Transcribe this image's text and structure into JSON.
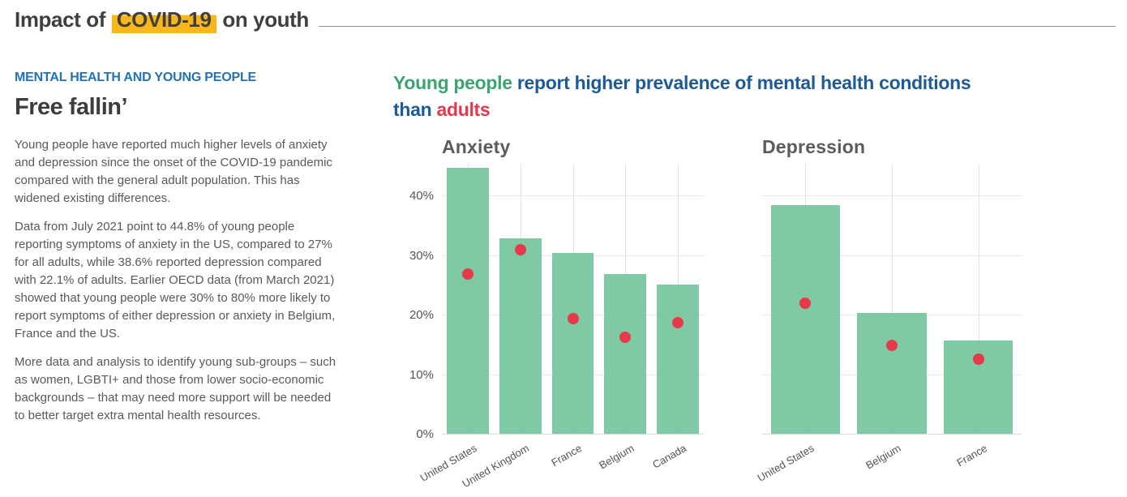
{
  "colors": {
    "title_text": "#3f3f41",
    "title_highlight": "#f8b71c",
    "kicker_blue": "#2173b5",
    "body_text": "#595959",
    "headline_blue": "#1d5b97",
    "headline_green": "#3ba470",
    "headline_red": "#e23a4c",
    "bar_fill": "rgba(105,191,148,0.85)",
    "dot_red": "#e8394a",
    "gridline": "#e9e9e9",
    "axis_line": "#d9d9d9"
  },
  "page": {
    "title_prefix": "Impact of ",
    "title_highlight": "COVID-19",
    "title_suffix": " on youth"
  },
  "sidebar": {
    "kicker": "MENTAL HEALTH AND YOUNG PEOPLE",
    "heading": "Free fallin’",
    "paragraphs": [
      "Young people have reported much higher levels of anxiety and depression since the onset of the COVID-19 pandemic compared with the general adult population. This has widened existing differences.",
      "Data from July 2021 point to 44.8% of young people reporting symptoms of anxiety in the US, compared to 27% for all adults, while 38.6% reported depression compared with 22.1% of adults. Earlier OECD data (from March 2021) showed that young people were 30% to 80% more likely to report symptoms of either depression or anxiety in Belgium, France and the US.",
      "More data and analysis to identify young sub-groups – such as women, LGBTI+ and those from lower socio-economic backgrounds – that may need more support will be needed to better target extra mental health resources."
    ]
  },
  "headline": {
    "line1_green": "Young people",
    "line1_blue": " report higher prevalence of mental health conditions",
    "line2_blue": "than ",
    "line2_red": "adults"
  },
  "chart_data": [
    {
      "type": "bar",
      "title": "Anxiety",
      "categories": [
        "United States",
        "United Kingdom",
        "France",
        "Belgium",
        "Canada"
      ],
      "series": [
        {
          "name": "Young people",
          "geom": "bar",
          "values": [
            44.8,
            33.0,
            30.5,
            27.0,
            25.2
          ]
        },
        {
          "name": "Adults",
          "geom": "point",
          "values": [
            27.0,
            31.0,
            19.5,
            16.3,
            18.8
          ]
        }
      ],
      "ylim": [
        0,
        45.5
      ],
      "grid_values": [
        0,
        10,
        20,
        30,
        40
      ],
      "yticks": [
        "0%",
        "10%",
        "20%",
        "30%",
        "40%"
      ],
      "grid": true,
      "legend": "none"
    },
    {
      "type": "bar",
      "title": "Depression",
      "categories": [
        "United States",
        "Belgium",
        "France"
      ],
      "series": [
        {
          "name": "Young people",
          "geom": "bar",
          "values": [
            38.6,
            20.4,
            15.8
          ]
        },
        {
          "name": "Adults",
          "geom": "point",
          "values": [
            22.1,
            15.0,
            12.7
          ]
        }
      ],
      "ylim": [
        0,
        45.5
      ],
      "grid_values": [
        0,
        10,
        20,
        30,
        40
      ],
      "yticks": [],
      "grid": true,
      "legend": "none"
    }
  ]
}
